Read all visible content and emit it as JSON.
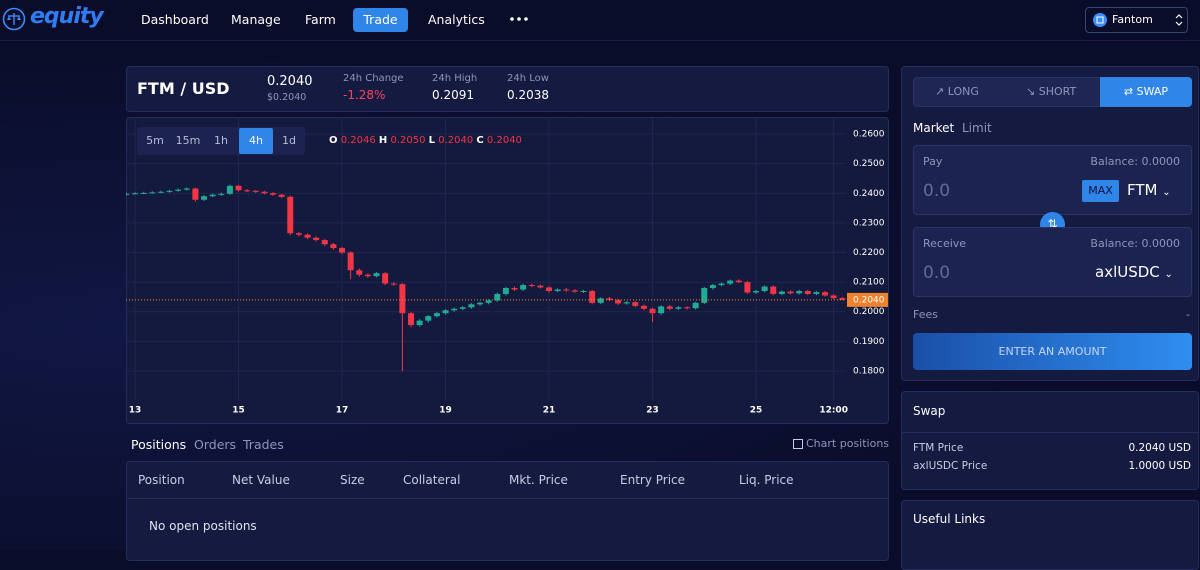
{
  "nav": {
    "brand": "equity",
    "items": [
      "Dashboard",
      "Manage",
      "Farm",
      "Trade",
      "Analytics"
    ],
    "network": "Fantom"
  },
  "market": {
    "pair": "FTM / USD",
    "price": "0.2040",
    "price_usd": "$0.2040",
    "stats": [
      {
        "label": "24h Change",
        "value": "-1.28%"
      },
      {
        "label": "24h High",
        "value": "0.2091"
      },
      {
        "label": "24h Low",
        "value": "0.2038"
      }
    ]
  },
  "timeframes": [
    "5m",
    "15m",
    "1h",
    "4h",
    "1d"
  ],
  "ohlc_legend": [
    {
      "key": "O",
      "value": "0.2046"
    },
    {
      "key": "H",
      "value": "0.2050"
    },
    {
      "key": "L",
      "value": "0.2040"
    },
    {
      "key": "C",
      "value": "0.2040"
    }
  ],
  "chart_data": {
    "type": "candlestick",
    "categories": [
      null,
      "13",
      null,
      null,
      null,
      null,
      null,
      null,
      null,
      null,
      null,
      null,
      null,
      "15",
      null,
      null,
      null,
      null,
      null,
      null,
      null,
      null,
      null,
      null,
      null,
      "17",
      null,
      null,
      null,
      null,
      null,
      null,
      null,
      null,
      null,
      null,
      null,
      "19",
      null,
      null,
      null,
      null,
      null,
      null,
      null,
      null,
      null,
      null,
      null,
      "21",
      null,
      null,
      null,
      null,
      null,
      null,
      null,
      null,
      null,
      null,
      null,
      "23",
      null,
      null,
      null,
      null,
      null,
      null,
      null,
      null,
      null,
      null,
      null,
      "25",
      null,
      null,
      null,
      null,
      null,
      null,
      null,
      null,
      "12:00",
      null
    ],
    "open": [
      0.2395,
      0.2398,
      0.24,
      0.2401,
      0.2403,
      0.2405,
      0.2408,
      0.2412,
      0.2416,
      0.2378,
      0.239,
      0.2395,
      0.2398,
      0.2425,
      0.241,
      0.2408,
      0.2405,
      0.24,
      0.2395,
      0.2388,
      0.2265,
      0.226,
      0.225,
      0.2242,
      0.2228,
      0.2215,
      0.22,
      0.214,
      0.2125,
      0.212,
      0.213,
      0.2095,
      0.2093,
      0.1995,
      0.1955,
      0.197,
      0.1985,
      0.1995,
      0.2005,
      0.201,
      0.2015,
      0.2025,
      0.203,
      0.2038,
      0.206,
      0.208,
      0.2075,
      0.209,
      0.2088,
      0.2082,
      0.207,
      0.2075,
      0.2072,
      0.2068,
      0.207,
      0.203,
      0.2045,
      0.204,
      0.2028,
      0.2032,
      0.202,
      0.201,
      0.1995,
      0.2018,
      0.201,
      0.2015,
      0.2012,
      0.203,
      0.208,
      0.209,
      0.2095,
      0.2105,
      0.21,
      0.2065,
      0.207,
      0.2085,
      0.206,
      0.2068,
      0.2062,
      0.207,
      0.206,
      0.2066,
      0.2055,
      0.2046
    ],
    "high": [
      0.2402,
      0.2404,
      0.2405,
      0.2407,
      0.2409,
      0.2412,
      0.2416,
      0.242,
      0.2419,
      0.2394,
      0.2399,
      0.2402,
      0.2429,
      0.2428,
      0.2414,
      0.2411,
      0.2408,
      0.2404,
      0.2398,
      0.2392,
      0.227,
      0.2264,
      0.2254,
      0.2246,
      0.2232,
      0.2219,
      0.2204,
      0.2146,
      0.213,
      0.2134,
      0.2134,
      0.21,
      0.2097,
      0.1999,
      0.1975,
      0.1989,
      0.1999,
      0.2009,
      0.2014,
      0.2019,
      0.2029,
      0.2034,
      0.2042,
      0.2064,
      0.2084,
      0.2085,
      0.2094,
      0.2095,
      0.2092,
      0.2086,
      0.2079,
      0.208,
      0.2076,
      0.2074,
      0.2074,
      0.2049,
      0.205,
      0.2044,
      0.2036,
      0.2036,
      0.2024,
      0.2014,
      0.2022,
      0.2022,
      0.2019,
      0.2019,
      0.2034,
      0.2084,
      0.2094,
      0.2099,
      0.2109,
      0.211,
      0.2104,
      0.2074,
      0.2089,
      0.2089,
      0.2072,
      0.2072,
      0.2074,
      0.2074,
      0.207,
      0.207,
      0.2059,
      0.205
    ],
    "low": [
      0.2392,
      0.2396,
      0.2397,
      0.2398,
      0.24,
      0.2402,
      0.2405,
      0.2409,
      0.2372,
      0.2374,
      0.2387,
      0.2391,
      0.2395,
      0.2406,
      0.2404,
      0.2401,
      0.2396,
      0.2391,
      0.2384,
      0.2258,
      0.2254,
      0.2245,
      0.2237,
      0.2222,
      0.2209,
      0.2194,
      0.211,
      0.2118,
      0.2114,
      0.2116,
      0.209,
      0.2088,
      0.18,
      0.1948,
      0.195,
      0.1964,
      0.198,
      0.199,
      0.2,
      0.2005,
      0.201,
      0.202,
      0.2025,
      0.2033,
      0.2055,
      0.207,
      0.207,
      0.2083,
      0.2078,
      0.2065,
      0.2066,
      0.2068,
      0.2064,
      0.2063,
      0.2025,
      0.2026,
      0.2035,
      0.2023,
      0.2024,
      0.2015,
      0.2005,
      0.1965,
      0.199,
      0.2005,
      0.2006,
      0.2007,
      0.2008,
      0.2026,
      0.2075,
      0.2086,
      0.209,
      0.2096,
      0.206,
      0.206,
      0.2066,
      0.2055,
      0.2056,
      0.2058,
      0.2058,
      0.2056,
      0.2056,
      0.2051,
      0.2042,
      0.204
    ],
    "close": [
      0.2398,
      0.24,
      0.2401,
      0.2403,
      0.2405,
      0.2408,
      0.2412,
      0.2416,
      0.2378,
      0.239,
      0.2395,
      0.2398,
      0.2425,
      0.241,
      0.2408,
      0.2405,
      0.24,
      0.2395,
      0.2388,
      0.2265,
      0.226,
      0.225,
      0.2242,
      0.2228,
      0.2215,
      0.22,
      0.214,
      0.2125,
      0.212,
      0.213,
      0.2095,
      0.2093,
      0.1995,
      0.1955,
      0.197,
      0.1985,
      0.1995,
      0.2005,
      0.201,
      0.2015,
      0.2025,
      0.203,
      0.2038,
      0.206,
      0.208,
      0.2075,
      0.209,
      0.2088,
      0.2082,
      0.207,
      0.2075,
      0.2072,
      0.2068,
      0.207,
      0.203,
      0.2045,
      0.204,
      0.2028,
      0.2032,
      0.202,
      0.201,
      0.1995,
      0.2018,
      0.201,
      0.2015,
      0.2012,
      0.203,
      0.208,
      0.209,
      0.2095,
      0.2105,
      0.21,
      0.2065,
      0.207,
      0.2085,
      0.206,
      0.2068,
      0.2062,
      0.207,
      0.206,
      0.2066,
      0.2055,
      0.2046,
      0.204
    ],
    "up_color": "#22ab94",
    "down_color": "#f23645",
    "ylim": [
      0.165,
      0.265
    ],
    "yticks": [
      {
        "value": 0.18,
        "label": "0.1800"
      },
      {
        "value": 0.19,
        "label": "0.1900"
      },
      {
        "value": 0.2,
        "label": "0.2000"
      },
      {
        "value": 0.21,
        "label": "0.2100"
      },
      {
        "value": 0.22,
        "label": "0.2200"
      },
      {
        "value": 0.23,
        "label": "0.2300"
      },
      {
        "value": 0.24,
        "label": "0.2400"
      },
      {
        "value": 0.25,
        "label": "0.2500"
      },
      {
        "value": 0.26,
        "label": "0.2600"
      }
    ],
    "last_price": {
      "value": 0.204,
      "label": "0.2040"
    },
    "last_price_color": "#f0822d",
    "grid": true
  },
  "trade_panel": {
    "tabs": [
      "LONG",
      "SHORT",
      "SWAP"
    ],
    "order_types": [
      "Market",
      "Limit"
    ],
    "pay": {
      "label": "Pay",
      "balance": "Balance: 0.0000",
      "amount": "0.0",
      "max": "MAX",
      "token": "FTM"
    },
    "receive": {
      "label": "Receive",
      "balance": "Balance: 0.0000",
      "amount": "0.0",
      "token": "axlUSDC"
    },
    "fees": {
      "label": "Fees",
      "value": "-"
    },
    "button": "ENTER AN AMOUNT"
  },
  "swap_info": {
    "title": "Swap",
    "rows": [
      [
        "FTM Price",
        "0.2040 USD"
      ],
      [
        "axlUSDC Price",
        "1.0000 USD"
      ]
    ]
  },
  "useful_links": {
    "title": "Useful Links"
  },
  "positions": {
    "tabs": [
      "Positions",
      "Orders",
      "Trades"
    ],
    "chart_positions": "Chart positions",
    "columns": [
      "Position",
      "Net Value",
      "Size",
      "Collateral",
      "Mkt. Price",
      "Entry Price",
      "Liq. Price"
    ],
    "empty": "No open positions"
  }
}
